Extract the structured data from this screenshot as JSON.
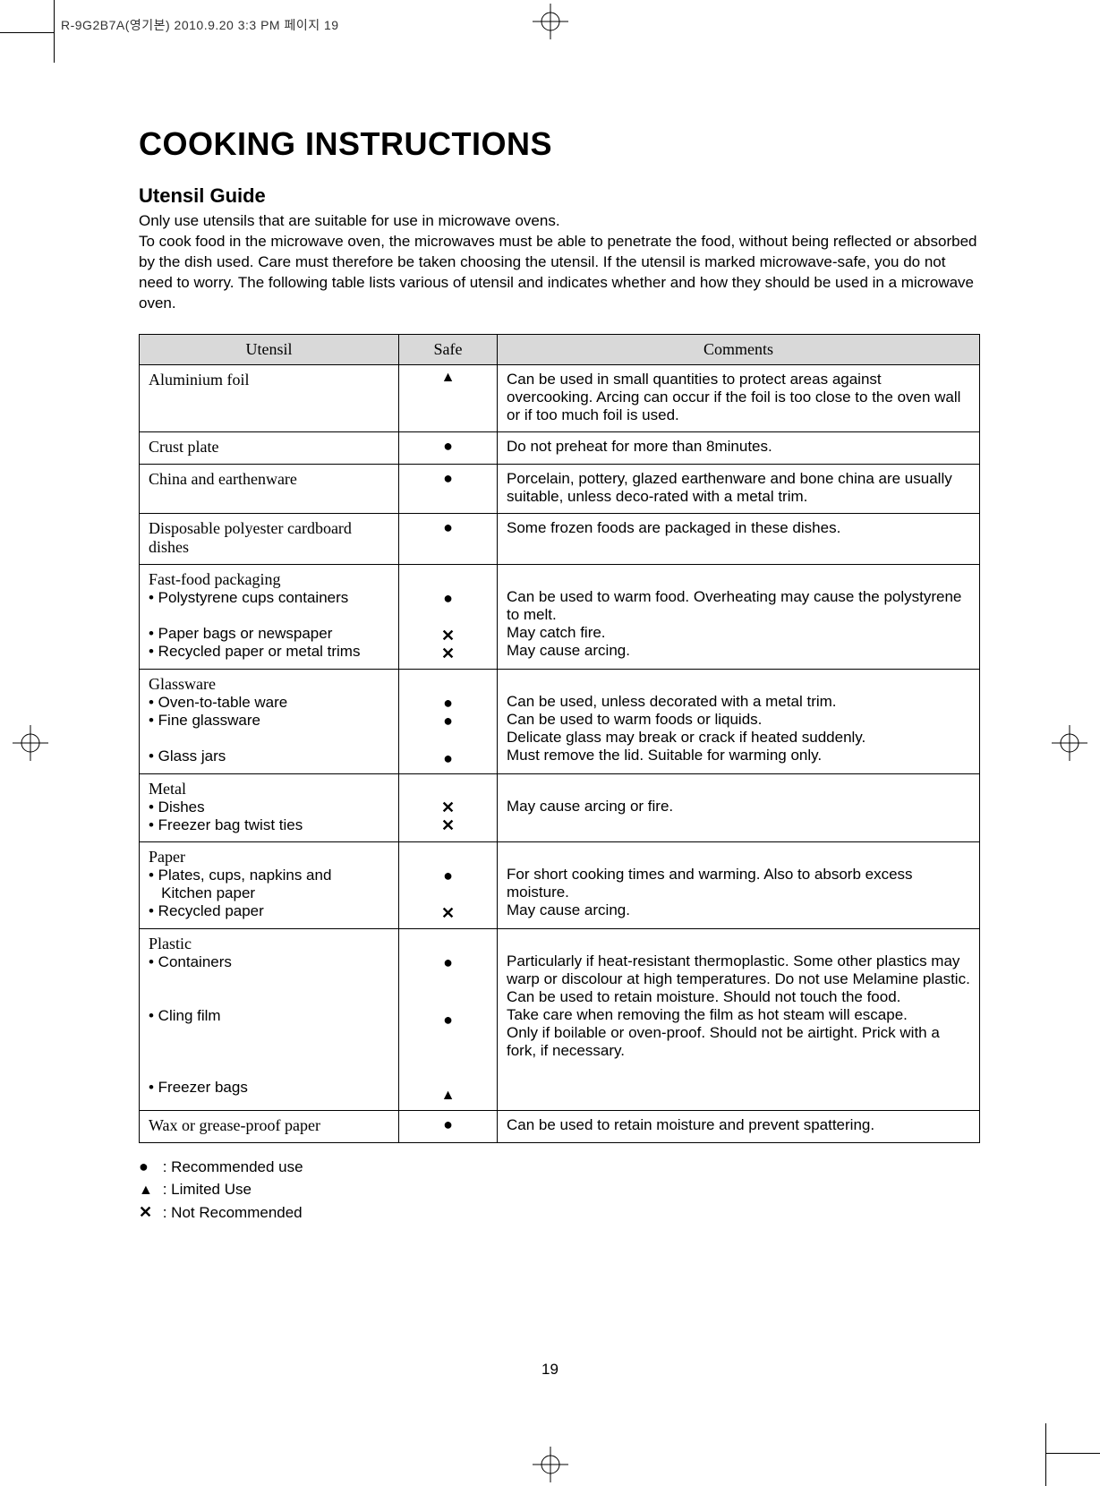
{
  "header_strip": "R-9G2B7A(영기본)  2010.9.20 3:3 PM  페이지 19",
  "title": "COOKING INSTRUCTIONS",
  "subtitle": "Utensil Guide",
  "intro_lines": [
    "Only use utensils that are suitable for use in microwave ovens.",
    "To cook food in the microwave oven, the microwaves must be able to penetrate the food, without being reflected or absorbed by the dish used. Care must therefore be taken choosing the utensil. If the utensil is marked microwave-safe, you do not need to worry. The following table lists various of utensil and indicates whether and how they should be used in a microwave oven."
  ],
  "table": {
    "headers": {
      "utensil": "Utensil",
      "safe": "Safe",
      "comments": "Comments"
    },
    "symbols": {
      "recommended": "●",
      "limited": "▲",
      "not": "✕"
    },
    "rows": [
      {
        "utensil_head": "Aluminium foil",
        "utensil_subs": [],
        "safe": [
          "limited"
        ],
        "comments": [
          "Can be used in small quantities to protect areas against overcooking. Arcing can occur if the foil is too close to the oven wall or if too much foil is used."
        ]
      },
      {
        "utensil_head": "Crust plate",
        "utensil_subs": [],
        "safe": [
          "recommended"
        ],
        "comments": [
          "Do not preheat for more than 8minutes."
        ]
      },
      {
        "utensil_head": "China and earthenware",
        "utensil_subs": [],
        "safe": [
          "recommended"
        ],
        "comments": [
          "Porcelain, pottery, glazed earthenware and bone china are usually suitable, unless deco-rated with a metal trim."
        ]
      },
      {
        "utensil_head": "Disposable polyester cardboard dishes",
        "utensil_subs": [],
        "safe": [
          "recommended"
        ],
        "comments": [
          "Some frozen foods are packaged in these dishes."
        ]
      },
      {
        "utensil_head": "Fast-food packaging",
        "utensil_subs": [
          "• Polystyrene cups containers",
          "",
          "• Paper bags or newspaper",
          "• Recycled paper or metal trims"
        ],
        "safe": [
          "",
          "recommended",
          "",
          "not",
          "not"
        ],
        "comments": [
          "",
          "Can be used to warm food. Overheating may cause the polystyrene to melt.",
          "May catch fire.",
          "May cause arcing."
        ]
      },
      {
        "utensil_head": "Glassware",
        "utensil_subs": [
          "• Oven-to-table ware",
          "• Fine glassware",
          "",
          "• Glass jars"
        ],
        "safe": [
          "",
          "recommended",
          "recommended",
          "",
          "recommended"
        ],
        "comments": [
          "",
          "Can be used, unless decorated with a metal trim.",
          "Can be used to warm foods or liquids.",
          "Delicate glass may break or crack if heated suddenly.",
          "Must remove the lid. Suitable for warming only."
        ]
      },
      {
        "utensil_head": "Metal",
        "utensil_subs": [
          "• Dishes",
          "• Freezer bag twist ties"
        ],
        "safe": [
          "",
          "not",
          "not"
        ],
        "comments": [
          "",
          "May cause arcing or fire.",
          ""
        ]
      },
      {
        "utensil_head": "Paper",
        "utensil_subs": [
          "• Plates, cups, napkins and",
          "   Kitchen paper",
          "• Recycled paper"
        ],
        "safe": [
          "",
          "recommended",
          "",
          "not"
        ],
        "comments": [
          "",
          "For short cooking times and warming. Also to absorb excess moisture.",
          "May cause arcing."
        ]
      },
      {
        "utensil_head": "Plastic",
        "utensil_subs": [
          "• Containers",
          "",
          "",
          "• Cling film",
          "",
          "",
          "",
          "• Freezer bags"
        ],
        "safe": [
          "",
          "recommended",
          "",
          "",
          "recommended",
          "",
          "",
          "",
          "limited"
        ],
        "comments": [
          "",
          "Particularly if heat-resistant thermoplastic. Some other plastics may warp or discolour at high temperatures. Do not use Melamine plastic.",
          "Can be used to retain moisture. Should not touch the food.",
          "Take care when removing the film as hot steam will escape.",
          "Only if boilable or oven-proof. Should not be airtight. Prick with a fork, if necessary."
        ]
      },
      {
        "utensil_head": "Wax or grease-proof paper",
        "utensil_subs": [],
        "safe": [
          "recommended"
        ],
        "comments": [
          "Can be used to retain moisture and prevent spattering."
        ]
      }
    ]
  },
  "legend": {
    "recommended": ": Recommended use",
    "limited": ": Limited Use",
    "not": ": Not Recommended"
  },
  "page_number": "19"
}
